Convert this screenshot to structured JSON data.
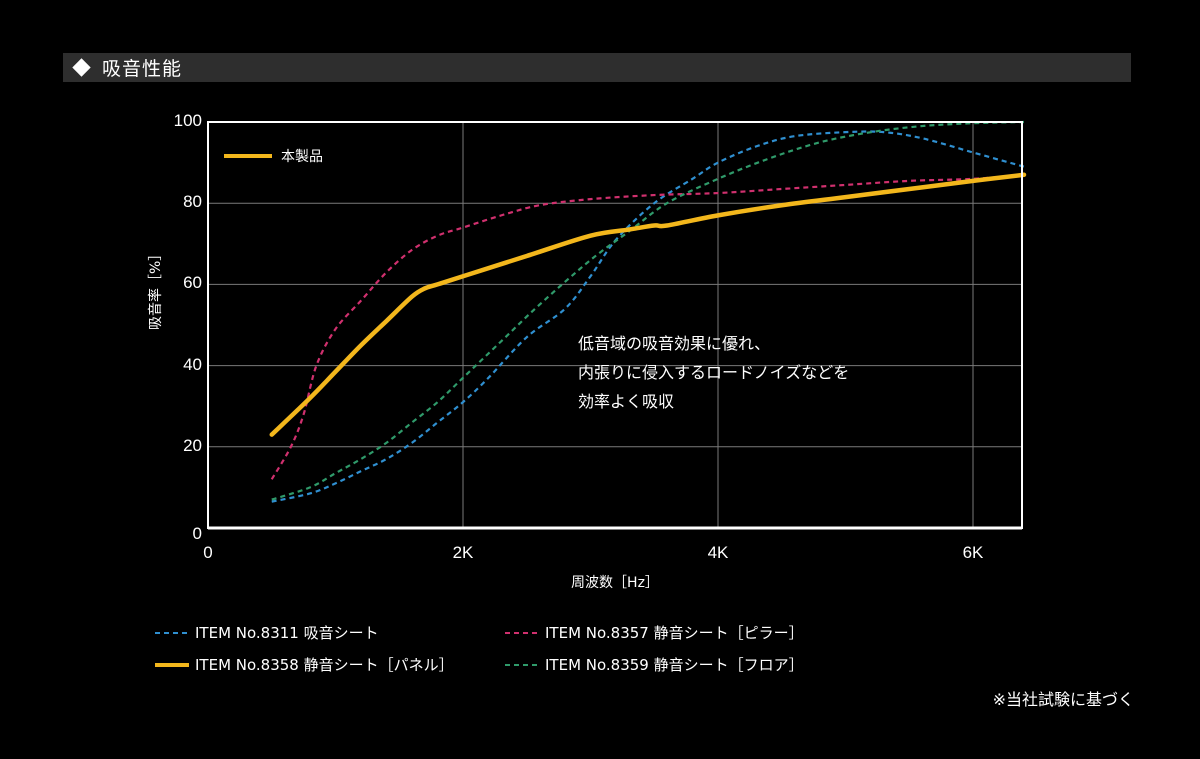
{
  "header": {
    "icon": "diamond-icon",
    "title": "吸音性能"
  },
  "annotation": "低音域の吸音効果に優れ、\n内張りに侵入するロードノイズなどを\n効率よく吸収",
  "inline_legend_label": "本製品",
  "footnote": "※当社試験に基づく",
  "colors": {
    "background": "#000000",
    "header_bar": "#2e2e2e",
    "grid": "#7a7a7a",
    "axis": "#ffffff"
  },
  "chart_data": {
    "type": "line",
    "title": "吸音性能",
    "xlabel": "周波数［Hz］",
    "ylabel": "吸音率［%］",
    "xlim": [
      0,
      6400
    ],
    "ylim": [
      0,
      100
    ],
    "x_ticks": [
      {
        "value": 0,
        "label": "0"
      },
      {
        "value": 2000,
        "label": "2K"
      },
      {
        "value": 4000,
        "label": "4K"
      },
      {
        "value": 6000,
        "label": "6K"
      }
    ],
    "y_ticks": [
      {
        "value": 0,
        "label": "0"
      },
      {
        "value": 20,
        "label": "20"
      },
      {
        "value": 40,
        "label": "40"
      },
      {
        "value": 60,
        "label": "60"
      },
      {
        "value": 80,
        "label": "80"
      },
      {
        "value": 100,
        "label": "100"
      }
    ],
    "grid": true,
    "legend_position": "bottom",
    "series": [
      {
        "name": "ITEM No.8311 吸音シート",
        "color": "#2f8fd0",
        "style": "dashed",
        "x": [
          500,
          800,
          1000,
          1200,
          1400,
          1600,
          1800,
          2000,
          2200,
          2500,
          2800,
          3000,
          3200,
          3500,
          3800,
          4000,
          4300,
          4600,
          5000,
          5300,
          5600,
          6000,
          6400
        ],
        "y": [
          6.5,
          8.5,
          11,
          14,
          17,
          21,
          26,
          31,
          37,
          47,
          54,
          62,
          71,
          80,
          86,
          90,
          94,
          96.5,
          97.5,
          97.5,
          96,
          92.5,
          89
        ]
      },
      {
        "name": "ITEM No.8357 静音シート［ピラー］",
        "color": "#d0306e",
        "style": "dashed",
        "x": [
          500,
          650,
          750,
          850,
          1000,
          1200,
          1400,
          1600,
          1800,
          2000,
          2300,
          2600,
          3000,
          3500,
          4000,
          4500,
          5000,
          5500,
          6000,
          6400
        ],
        "y": [
          12,
          20,
          28,
          40,
          49,
          56,
          63,
          68.5,
          72,
          74,
          77,
          79.5,
          81,
          82,
          82.5,
          83.5,
          84.5,
          85.5,
          86,
          87
        ]
      },
      {
        "name": "ITEM No.8358 静音シート［パネル］",
        "color": "#f3b71c",
        "style": "solid",
        "x": [
          500,
          800,
          1000,
          1200,
          1400,
          1600,
          1700,
          1800,
          2000,
          2500,
          3000,
          3300,
          3500,
          3600,
          4000,
          4500,
          5000,
          5500,
          6000,
          6400
        ],
        "y": [
          23,
          32,
          38.5,
          45,
          51,
          57,
          59,
          60,
          62,
          67,
          72,
          73.5,
          74.5,
          74.5,
          77,
          79.5,
          81.5,
          83.5,
          85.5,
          87
        ]
      },
      {
        "name": "ITEM No.8359 静音シート［フロア］",
        "color": "#2f9a6a",
        "style": "dashed",
        "x": [
          500,
          800,
          1000,
          1200,
          1400,
          1600,
          1800,
          2000,
          2300,
          2600,
          3000,
          3300,
          3600,
          4000,
          4400,
          4800,
          5200,
          5600,
          6000,
          6400
        ],
        "y": [
          7,
          10,
          13.5,
          17,
          21,
          26,
          31,
          37,
          46,
          55,
          66,
          73,
          80,
          86,
          91,
          95,
          97.5,
          99,
          99.7,
          100
        ]
      }
    ]
  },
  "legend": {
    "items": [
      {
        "label": "ITEM No.8311 吸音シート",
        "color": "#2f8fd0",
        "style": "dashed"
      },
      {
        "label": "ITEM No.8357 静音シート［ピラー］",
        "color": "#d0306e",
        "style": "dashed"
      },
      {
        "label": "ITEM No.8358 静音シート［パネル］",
        "color": "#f3b71c",
        "style": "solid"
      },
      {
        "label": "ITEM No.8359 静音シート［フロア］",
        "color": "#2f9a6a",
        "style": "dashed"
      }
    ]
  }
}
